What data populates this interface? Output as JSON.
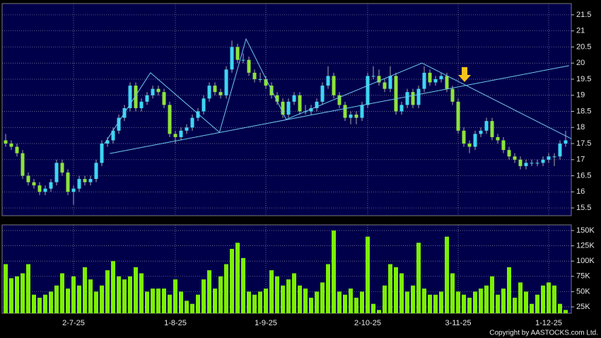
{
  "chart_data": [
    {
      "type": "candlestick",
      "open": [
        17.6,
        17.5,
        17.4,
        17.2,
        16.5,
        16.3,
        16.2,
        16.0,
        16.1,
        16.3,
        16.9,
        16.6,
        16.0,
        16.1,
        16.4,
        16.3,
        16.4,
        16.9,
        17.5,
        17.6,
        17.9,
        18.3,
        18.6,
        19.3,
        18.6,
        18.8,
        19.0,
        19.2,
        19.1,
        18.7,
        17.8,
        17.7,
        17.9,
        18.0,
        18.3,
        18.5,
        18.9,
        19.3,
        19.1,
        19.0,
        19.8,
        20.5,
        20.1,
        20.1,
        19.7,
        19.5,
        19.5,
        19.3,
        19.0,
        18.8,
        18.4,
        18.8,
        19.0,
        18.5,
        18.5,
        18.6,
        18.8,
        19.3,
        19.6,
        19.0,
        18.7,
        18.3,
        18.4,
        18.3,
        18.7,
        19.6,
        19.6,
        19.4,
        19.2,
        19.6,
        18.5,
        18.7,
        19.1,
        18.7,
        19.2,
        19.7,
        19.4,
        19.5,
        19.6,
        19.2,
        18.8,
        17.9,
        17.5,
        17.4,
        17.8,
        17.9,
        18.2,
        17.7,
        17.6,
        17.3,
        17.1,
        17.0,
        16.8,
        16.9,
        16.9,
        16.9,
        17.0,
        17.1,
        17.1,
        17.5
      ],
      "high": [
        17.8,
        17.6,
        17.5,
        17.3,
        16.6,
        16.4,
        16.3,
        16.2,
        16.4,
        17.0,
        17.0,
        16.7,
        16.2,
        16.5,
        16.5,
        16.5,
        17.0,
        17.6,
        17.7,
        18.0,
        18.4,
        18.7,
        19.4,
        19.4,
        18.9,
        19.1,
        19.3,
        19.3,
        19.2,
        18.8,
        17.9,
        18.0,
        18.1,
        18.4,
        18.6,
        19.0,
        19.4,
        19.4,
        19.2,
        19.9,
        20.7,
        20.6,
        20.3,
        20.2,
        19.8,
        19.7,
        19.6,
        19.4,
        19.1,
        18.9,
        18.9,
        19.1,
        19.1,
        18.7,
        18.7,
        18.9,
        19.4,
        19.9,
        19.7,
        19.1,
        18.8,
        18.5,
        18.5,
        18.8,
        19.7,
        19.9,
        19.8,
        19.5,
        19.9,
        19.7,
        18.8,
        19.2,
        19.2,
        19.3,
        19.9,
        19.8,
        19.6,
        19.7,
        19.7,
        19.3,
        18.9,
        18.0,
        17.6,
        17.9,
        18.0,
        18.3,
        18.3,
        17.8,
        17.7,
        17.4,
        17.2,
        17.1,
        17.0,
        17.0,
        17.0,
        17.1,
        17.2,
        17.2,
        17.6,
        17.9
      ],
      "low": [
        17.4,
        17.3,
        17.1,
        16.4,
        16.2,
        16.1,
        15.9,
        15.9,
        16.0,
        16.2,
        16.5,
        15.9,
        15.6,
        16.0,
        16.2,
        16.2,
        16.3,
        16.8,
        17.4,
        17.5,
        17.8,
        18.2,
        18.5,
        18.5,
        18.5,
        18.7,
        18.9,
        19.0,
        18.6,
        17.7,
        17.5,
        17.6,
        17.8,
        17.9,
        18.2,
        18.4,
        18.8,
        19.0,
        18.9,
        18.9,
        19.7,
        20.0,
        20.0,
        19.6,
        19.4,
        19.4,
        19.2,
        18.9,
        18.7,
        18.3,
        18.3,
        18.7,
        18.4,
        18.4,
        18.4,
        18.5,
        18.7,
        19.2,
        18.9,
        18.6,
        18.2,
        18.1,
        18.1,
        18.2,
        18.6,
        19.5,
        19.3,
        19.1,
        19.1,
        18.4,
        18.4,
        18.6,
        18.6,
        18.6,
        19.1,
        19.3,
        19.3,
        19.4,
        19.1,
        18.7,
        17.8,
        17.4,
        17.2,
        17.3,
        17.7,
        17.8,
        17.6,
        17.5,
        17.2,
        17.0,
        16.9,
        16.7,
        16.7,
        16.8,
        16.8,
        16.8,
        16.9,
        16.8,
        17.0,
        17.4
      ],
      "close": [
        17.5,
        17.4,
        17.2,
        16.5,
        16.3,
        16.2,
        16.0,
        16.1,
        16.3,
        16.9,
        16.6,
        16.0,
        16.1,
        16.4,
        16.3,
        16.4,
        16.9,
        17.5,
        17.6,
        17.9,
        18.3,
        18.6,
        19.3,
        18.6,
        18.8,
        19.0,
        19.2,
        19.1,
        18.7,
        17.8,
        17.7,
        17.9,
        18.0,
        18.3,
        18.5,
        18.9,
        19.3,
        19.1,
        19.0,
        19.8,
        20.5,
        20.1,
        20.1,
        19.7,
        19.5,
        19.5,
        19.3,
        19.0,
        18.8,
        18.4,
        18.8,
        19.0,
        18.5,
        18.5,
        18.6,
        18.8,
        19.3,
        19.6,
        19.0,
        18.7,
        18.3,
        18.4,
        18.3,
        18.7,
        19.6,
        19.6,
        19.4,
        19.2,
        19.6,
        18.5,
        18.7,
        19.1,
        18.7,
        19.2,
        19.7,
        19.4,
        19.5,
        19.6,
        19.2,
        18.8,
        17.9,
        17.5,
        17.4,
        17.8,
        17.9,
        18.2,
        17.7,
        17.6,
        17.3,
        17.1,
        17.0,
        16.8,
        16.9,
        16.9,
        16.9,
        17.0,
        17.1,
        17.1,
        17.5,
        17.6
      ],
      "up_color": "#3ed6f2",
      "down_color": "#8ee33a",
      "xlim": [
        -1,
        100
      ],
      "ylim": [
        15.26,
        21.85
      ],
      "yticks": [
        15.5,
        16,
        16.5,
        17,
        17.5,
        18,
        18.5,
        19,
        19.5,
        20,
        20.5,
        21,
        21.5
      ],
      "grid": true,
      "trend_lines": [
        {
          "color": "#6fc8f0",
          "x": [
            18.4,
            99.6
          ],
          "y": [
            17.19,
            19.92
          ]
        },
        {
          "color": "#6fc8f0",
          "x": [
            17.5,
            25.6,
            37.8,
            42.5,
            49.6,
            73.6,
            100
          ],
          "y": [
            17.5,
            19.7,
            17.85,
            20.75,
            18.25,
            20.0,
            17.65
          ]
        }
      ]
    },
    {
      "type": "bar",
      "values": [
        95000,
        72000,
        75000,
        80000,
        95000,
        45000,
        40000,
        45000,
        50000,
        60000,
        80000,
        55000,
        75000,
        60000,
        90000,
        70000,
        50000,
        60000,
        85000,
        100000,
        75000,
        70000,
        75000,
        90000,
        80000,
        50000,
        55000,
        55000,
        55000,
        45000,
        70000,
        50000,
        35000,
        30000,
        45000,
        70000,
        85000,
        55000,
        75000,
        95000,
        120000,
        130000,
        105000,
        50000,
        45000,
        50000,
        55000,
        85000,
        75000,
        60000,
        70000,
        80000,
        60000,
        55000,
        40000,
        50000,
        65000,
        95000,
        150000,
        50000,
        45000,
        55000,
        40000,
        50000,
        140000,
        30000,
        20000,
        60000,
        95000,
        90000,
        80000,
        50000,
        60000,
        130000,
        55000,
        45000,
        45000,
        50000,
        140000,
        80000,
        50000,
        45000,
        40000,
        50000,
        55000,
        60000,
        75000,
        45000,
        55000,
        90000,
        40000,
        65000,
        50000,
        30000,
        45000,
        60000,
        65000,
        60000,
        30000,
        20000
      ],
      "color": "#7cf000",
      "xlim": [
        -1,
        100
      ],
      "ylim": [
        14600,
        159300
      ],
      "yticks": [
        {
          "value": 25000,
          "label": "25K"
        },
        {
          "value": 50000,
          "label": "50K"
        },
        {
          "value": 75000,
          "label": "75K"
        },
        {
          "value": 100000,
          "label": "100K"
        },
        {
          "value": 125000,
          "label": "125K"
        },
        {
          "value": 150000,
          "label": "150K"
        }
      ],
      "xticks": [
        {
          "value": 12,
          "label": "2-7-25"
        },
        {
          "value": 30,
          "label": "1-8-25"
        },
        {
          "value": 46,
          "label": "1-9-25"
        },
        {
          "value": 64,
          "label": "2-10-25"
        },
        {
          "value": 80,
          "label": "3-11-25"
        },
        {
          "value": 96,
          "label": "1-12-25"
        }
      ],
      "grid": true
    }
  ],
  "footer": "Copyright by AASTOCKS.com Ltd."
}
